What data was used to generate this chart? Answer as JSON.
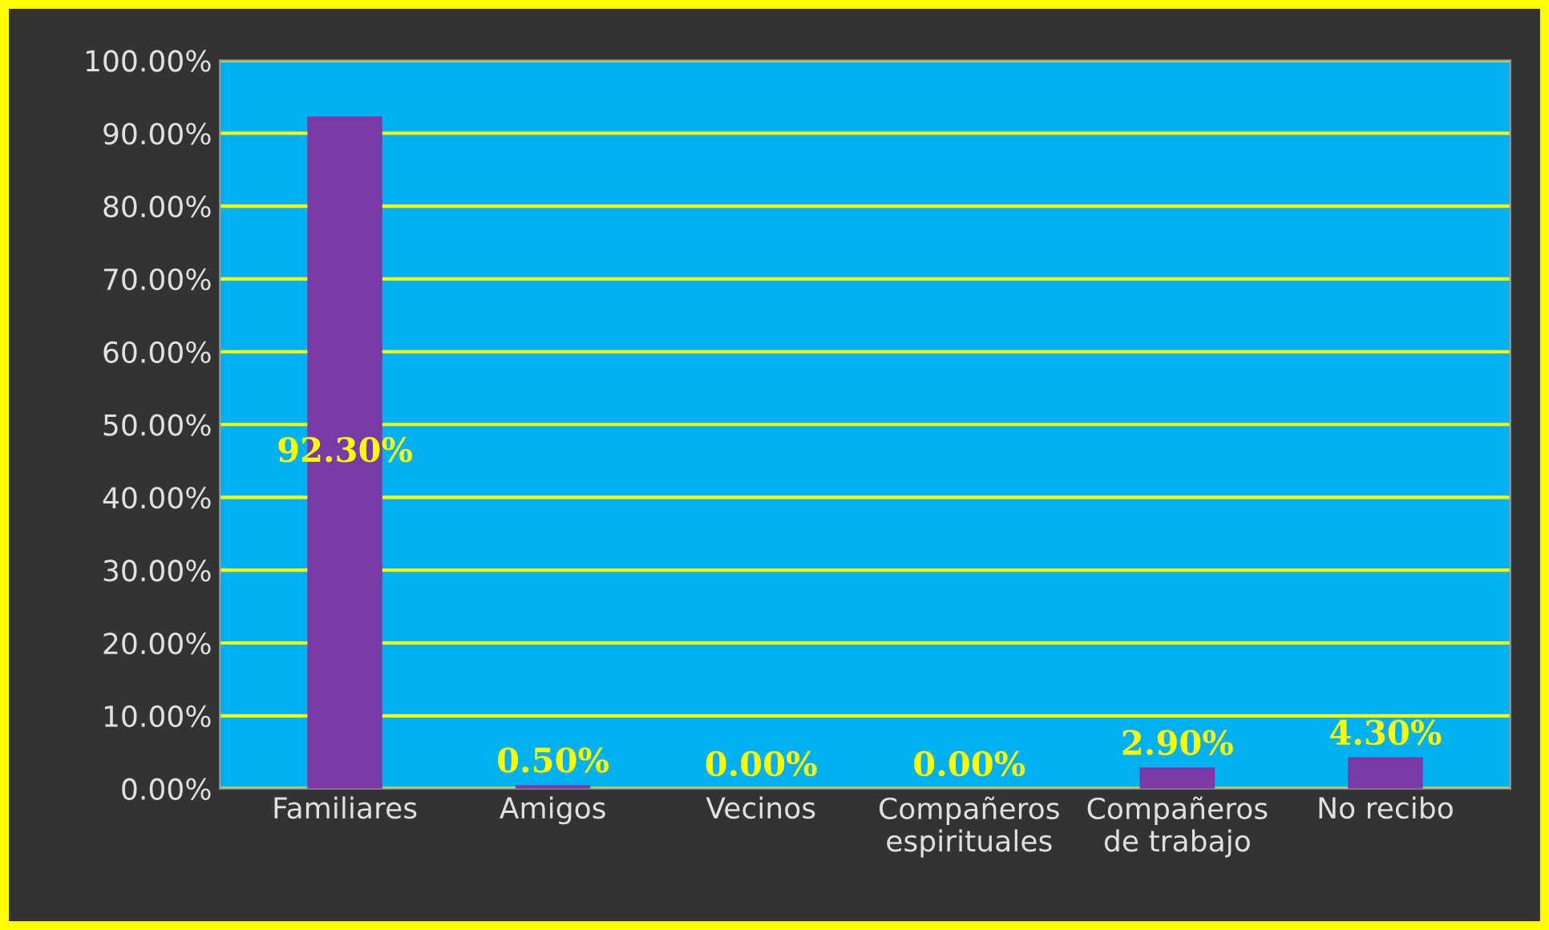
{
  "chart_data": {
    "type": "bar",
    "categories": [
      "Familiares",
      "Amigos",
      "Vecinos",
      "Compañeros\nespirituales",
      "Compañeros\nde trabajo",
      "No recibo"
    ],
    "values": [
      92.3,
      0.5,
      0.0,
      0.0,
      2.9,
      4.3
    ],
    "value_labels": [
      "92.30%",
      "0.50%",
      "0.00%",
      "0.00%",
      "2.90%",
      "4.30%"
    ],
    "color": "#7b3aa6",
    "ylim": [
      0,
      100
    ],
    "yticks": [
      {
        "value": 0,
        "label": "0.00%"
      },
      {
        "value": 10,
        "label": "10.00%"
      },
      {
        "value": 20,
        "label": "20.00%"
      },
      {
        "value": 30,
        "label": "30.00%"
      },
      {
        "value": 40,
        "label": "40.00%"
      },
      {
        "value": 50,
        "label": "50.00%"
      },
      {
        "value": 60,
        "label": "60.00%"
      },
      {
        "value": 70,
        "label": "70.00%"
      },
      {
        "value": 80,
        "label": "80.00%"
      },
      {
        "value": 90,
        "label": "90.00%"
      },
      {
        "value": 100,
        "label": "100.00%"
      }
    ],
    "grid": "y",
    "legend": false
  }
}
